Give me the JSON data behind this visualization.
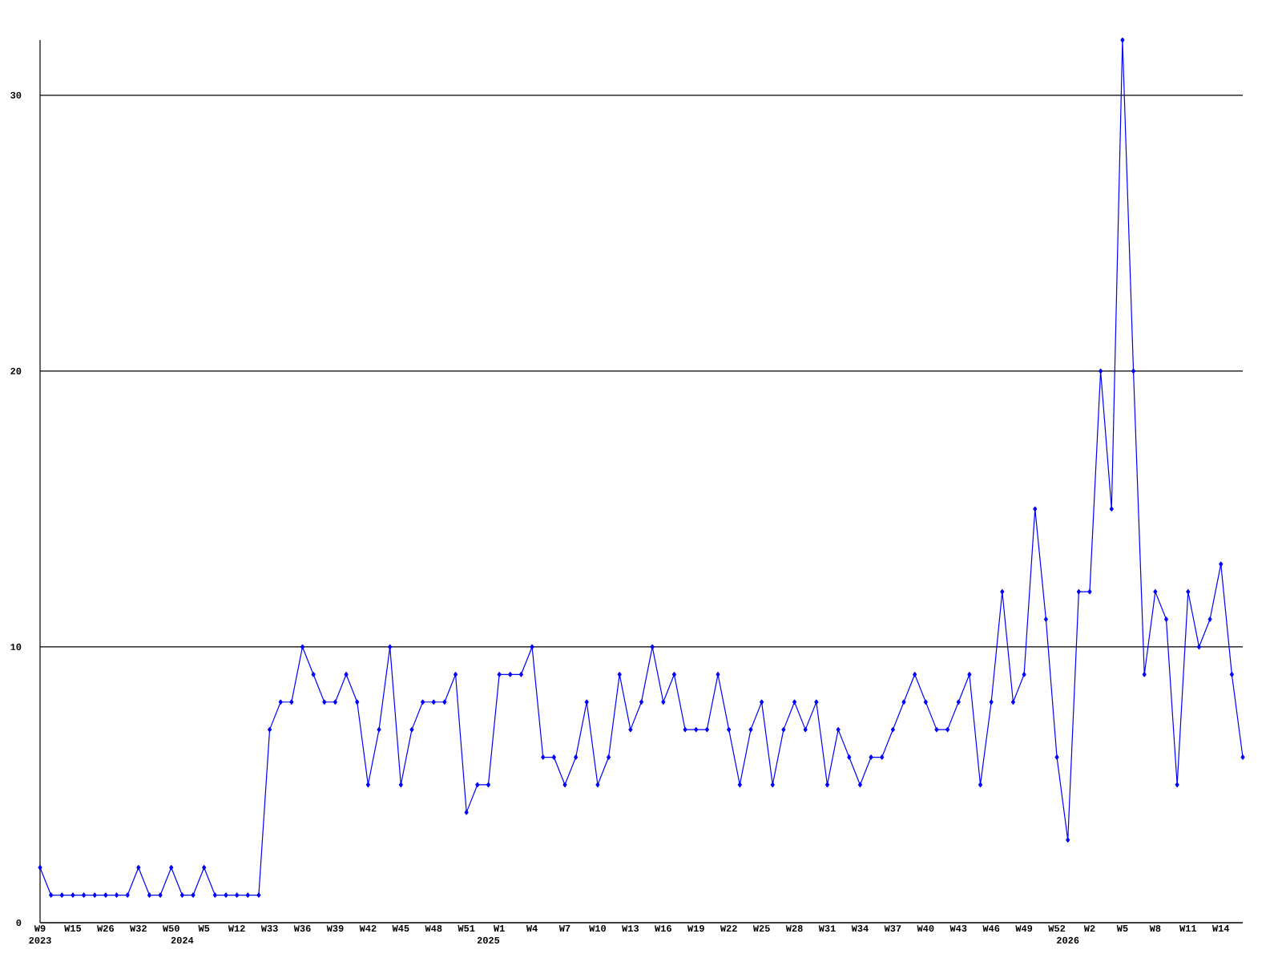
{
  "chart_data": {
    "type": "line",
    "categories": [
      "W9 2023",
      null,
      null,
      "W15",
      null,
      null,
      "W26",
      null,
      null,
      "W32",
      null,
      null,
      "W50",
      "2024",
      null,
      "W5",
      null,
      null,
      "W12",
      null,
      null,
      "W33",
      null,
      null,
      "W36",
      null,
      null,
      "W39",
      null,
      null,
      "W42",
      null,
      null,
      "W45",
      null,
      null,
      "W48",
      null,
      null,
      "W51",
      null,
      "2025",
      "W1",
      null,
      null,
      "W4",
      null,
      null,
      "W7",
      null,
      null,
      "W10",
      null,
      null,
      "W13",
      null,
      null,
      "W16",
      null,
      null,
      "W19",
      null,
      null,
      "W22",
      null,
      null,
      "W25",
      null,
      null,
      "W28",
      null,
      null,
      "W31",
      null,
      null,
      "W34",
      null,
      null,
      "W37",
      null,
      null,
      "W40",
      null,
      null,
      "W43",
      null,
      null,
      "W46",
      null,
      null,
      "W49",
      null,
      null,
      "W52",
      "2026",
      null,
      "W2",
      null,
      null,
      "W5",
      null,
      null,
      "W8",
      null,
      null,
      "W11",
      null,
      null,
      "W14",
      null,
      null
    ],
    "series": [
      {
        "color": "#0000ff",
        "values": [
          2,
          1,
          1,
          1,
          1,
          1,
          1,
          1,
          1,
          2,
          1,
          1,
          2,
          1,
          1,
          2,
          1,
          1,
          1,
          1,
          1,
          7,
          8,
          8,
          10,
          9,
          8,
          8,
          9,
          8,
          5,
          7,
          10,
          5,
          7,
          8,
          8,
          8,
          9,
          4,
          5,
          5,
          9,
          9,
          9,
          10,
          6,
          6,
          5,
          6,
          8,
          5,
          6,
          9,
          7,
          8,
          10,
          8,
          9,
          7,
          7,
          7,
          9,
          7,
          5,
          7,
          8,
          5,
          7,
          8,
          7,
          8,
          5,
          7,
          6,
          5,
          6,
          6,
          7,
          8,
          9,
          8,
          7,
          7,
          8,
          9,
          5,
          8,
          12,
          8,
          9,
          15,
          11,
          6,
          3,
          12,
          12,
          20,
          15,
          32,
          20,
          9,
          12,
          11,
          5,
          12,
          10,
          11,
          13,
          9,
          6
        ]
      }
    ],
    "ylim": [
      0,
      32
    ],
    "yticks": [
      0,
      10,
      20,
      30
    ],
    "grid": "y",
    "marker": "diamond"
  }
}
